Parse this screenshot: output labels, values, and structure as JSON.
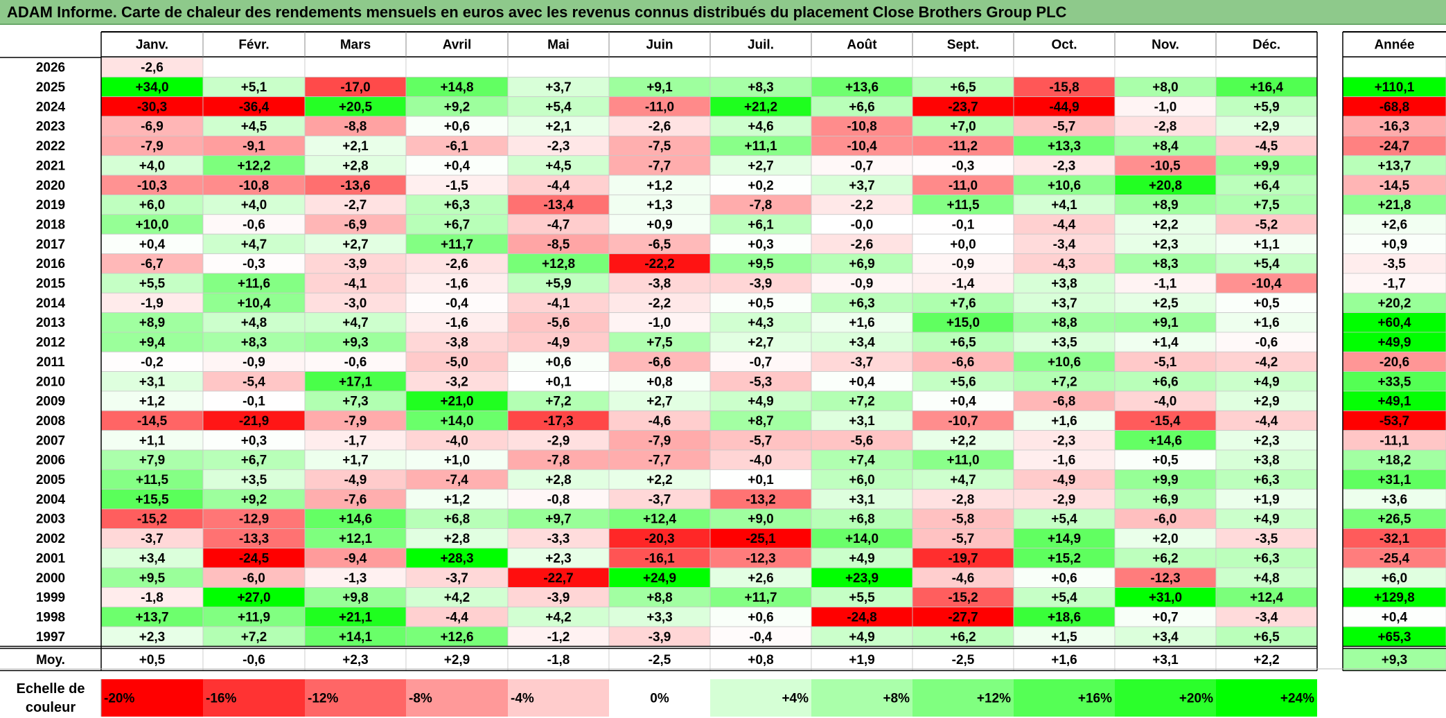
{
  "title": "ADAM Informe. Carte de chaleur des rendements mensuels en euros avec les revenus connus distribués du placement Close Brothers Group PLC",
  "chart_data": {
    "type": "heatmap",
    "columns": [
      "Janv.",
      "Févr.",
      "Mars",
      "Avril",
      "Mai",
      "Juin",
      "Juil.",
      "Août",
      "Sept.",
      "Oct.",
      "Nov.",
      "Déc."
    ],
    "year_column_label": "Année",
    "average_row_label": "Moy.",
    "rows": [
      {
        "label": "2026",
        "values": [
          "-2,6",
          "",
          "",
          "",
          "",
          "",
          "",
          "",
          "",
          "",
          "",
          ""
        ],
        "year": ""
      },
      {
        "label": "2025",
        "values": [
          "+34,0",
          "+5,1",
          "-17,0",
          "+14,8",
          "+3,7",
          "+9,1",
          "+8,3",
          "+13,6",
          "+6,5",
          "-15,8",
          "+8,0",
          "+16,4"
        ],
        "year": "+110,1"
      },
      {
        "label": "2024",
        "values": [
          "-30,3",
          "-36,4",
          "+20,5",
          "+9,2",
          "+5,4",
          "-11,0",
          "+21,2",
          "+6,6",
          "-23,7",
          "-44,9",
          "-1,0",
          "+5,9"
        ],
        "year": "-68,8"
      },
      {
        "label": "2023",
        "values": [
          "-6,9",
          "+4,5",
          "-8,8",
          "+0,6",
          "+2,1",
          "-2,6",
          "+4,6",
          "-10,8",
          "+7,0",
          "-5,7",
          "-2,8",
          "+2,9"
        ],
        "year": "-16,3"
      },
      {
        "label": "2022",
        "values": [
          "-7,9",
          "-9,1",
          "+2,1",
          "-6,1",
          "-2,3",
          "-7,5",
          "+11,1",
          "-10,4",
          "-11,2",
          "+13,3",
          "+8,4",
          "-4,5"
        ],
        "year": "-24,7"
      },
      {
        "label": "2021",
        "values": [
          "+4,0",
          "+12,2",
          "+2,8",
          "+0,4",
          "+4,5",
          "-7,7",
          "+2,7",
          "-0,7",
          "-0,3",
          "-2,3",
          "-10,5",
          "+9,9"
        ],
        "year": "+13,7"
      },
      {
        "label": "2020",
        "values": [
          "-10,3",
          "-10,8",
          "-13,6",
          "-1,5",
          "-4,4",
          "+1,2",
          "+0,2",
          "+3,7",
          "-11,0",
          "+10,6",
          "+20,8",
          "+6,4"
        ],
        "year": "-14,5"
      },
      {
        "label": "2019",
        "values": [
          "+6,0",
          "+4,0",
          "-2,7",
          "+6,3",
          "-13,4",
          "+1,3",
          "-7,8",
          "-2,2",
          "+11,5",
          "+4,1",
          "+8,9",
          "+7,5"
        ],
        "year": "+21,8"
      },
      {
        "label": "2018",
        "values": [
          "+10,0",
          "-0,6",
          "-6,9",
          "+6,7",
          "-4,7",
          "+0,9",
          "+6,1",
          "-0,0",
          "-0,1",
          "-4,4",
          "+2,2",
          "-5,2"
        ],
        "year": "+2,6"
      },
      {
        "label": "2017",
        "values": [
          "+0,4",
          "+4,7",
          "+2,7",
          "+11,7",
          "-8,5",
          "-6,5",
          "+0,3",
          "-2,6",
          "+0,0",
          "-3,4",
          "+2,3",
          "+1,1"
        ],
        "year": "+0,9"
      },
      {
        "label": "2016",
        "values": [
          "-6,7",
          "-0,3",
          "-3,9",
          "-2,6",
          "+12,8",
          "-22,2",
          "+9,5",
          "+6,9",
          "-0,9",
          "-4,3",
          "+8,3",
          "+5,4"
        ],
        "year": "-3,5"
      },
      {
        "label": "2015",
        "values": [
          "+5,5",
          "+11,6",
          "-4,1",
          "-1,6",
          "+5,9",
          "-3,8",
          "-3,9",
          "-0,9",
          "-1,4",
          "+3,8",
          "-1,1",
          "-10,4"
        ],
        "year": "-1,7"
      },
      {
        "label": "2014",
        "values": [
          "-1,9",
          "+10,4",
          "-3,0",
          "-0,4",
          "-4,1",
          "-2,2",
          "+0,5",
          "+6,3",
          "+7,6",
          "+3,7",
          "+2,5",
          "+0,5"
        ],
        "year": "+20,2"
      },
      {
        "label": "2013",
        "values": [
          "+8,9",
          "+4,8",
          "+4,7",
          "-1,6",
          "-5,6",
          "-1,0",
          "+4,3",
          "+1,6",
          "+15,0",
          "+8,8",
          "+9,1",
          "+1,6"
        ],
        "year": "+60,4"
      },
      {
        "label": "2012",
        "values": [
          "+9,4",
          "+8,3",
          "+9,3",
          "-3,8",
          "-4,9",
          "+7,5",
          "+2,7",
          "+3,4",
          "+6,5",
          "+3,5",
          "+1,4",
          "-0,6"
        ],
        "year": "+49,9"
      },
      {
        "label": "2011",
        "values": [
          "-0,2",
          "-0,9",
          "-0,6",
          "-5,0",
          "+0,6",
          "-6,6",
          "-0,7",
          "-3,7",
          "-6,6",
          "+10,6",
          "-5,1",
          "-4,2"
        ],
        "year": "-20,6"
      },
      {
        "label": "2010",
        "values": [
          "+3,1",
          "-5,4",
          "+17,1",
          "-3,2",
          "+0,1",
          "+0,8",
          "-5,3",
          "+0,4",
          "+5,6",
          "+7,2",
          "+6,6",
          "+4,9"
        ],
        "year": "+33,5"
      },
      {
        "label": "2009",
        "values": [
          "+1,2",
          "-0,1",
          "+7,3",
          "+21,0",
          "+7,2",
          "+2,7",
          "+4,9",
          "+7,2",
          "+0,4",
          "-6,8",
          "-4,0",
          "+2,9"
        ],
        "year": "+49,1"
      },
      {
        "label": "2008",
        "values": [
          "-14,5",
          "-21,9",
          "-7,9",
          "+14,0",
          "-17,3",
          "-4,6",
          "+8,7",
          "+3,1",
          "-10,7",
          "+1,6",
          "-15,4",
          "-4,4"
        ],
        "year": "-53,7"
      },
      {
        "label": "2007",
        "values": [
          "+1,1",
          "+0,3",
          "-1,7",
          "-4,0",
          "-2,9",
          "-7,9",
          "-5,7",
          "-5,6",
          "+2,2",
          "-2,3",
          "+14,6",
          "+2,3"
        ],
        "year": "-11,1"
      },
      {
        "label": "2006",
        "values": [
          "+7,9",
          "+6,7",
          "+1,7",
          "+1,0",
          "-7,8",
          "-7,7",
          "-4,0",
          "+7,4",
          "+11,0",
          "-1,6",
          "+0,5",
          "+3,8"
        ],
        "year": "+18,2"
      },
      {
        "label": "2005",
        "values": [
          "+11,5",
          "+3,5",
          "-4,9",
          "-7,4",
          "+2,8",
          "+2,2",
          "+0,1",
          "+6,0",
          "+4,7",
          "-4,9",
          "+9,9",
          "+6,3"
        ],
        "year": "+31,1"
      },
      {
        "label": "2004",
        "values": [
          "+15,5",
          "+9,2",
          "-7,6",
          "+1,2",
          "-0,8",
          "-3,7",
          "-13,2",
          "+3,1",
          "-2,8",
          "-2,9",
          "+6,9",
          "+1,9"
        ],
        "year": "+3,6"
      },
      {
        "label": "2003",
        "values": [
          "-15,2",
          "-12,9",
          "+14,6",
          "+6,8",
          "+9,7",
          "+12,4",
          "+9,0",
          "+6,8",
          "-5,8",
          "+5,4",
          "-6,0",
          "+4,9"
        ],
        "year": "+26,5"
      },
      {
        "label": "2002",
        "values": [
          "-3,7",
          "-13,3",
          "+12,1",
          "+2,8",
          "-3,3",
          "-20,3",
          "-25,1",
          "+14,0",
          "-5,7",
          "+14,9",
          "+2,0",
          "-3,5"
        ],
        "year": "-32,1"
      },
      {
        "label": "2001",
        "values": [
          "+3,4",
          "-24,5",
          "-9,4",
          "+28,3",
          "+2,3",
          "-16,1",
          "-12,3",
          "+4,9",
          "-19,7",
          "+15,2",
          "+6,2",
          "+6,3"
        ],
        "year": "-25,4"
      },
      {
        "label": "2000",
        "values": [
          "+9,5",
          "-6,0",
          "-1,3",
          "-3,7",
          "-22,7",
          "+24,9",
          "+2,6",
          "+23,9",
          "-4,6",
          "+0,6",
          "-12,3",
          "+4,8"
        ],
        "year": "+6,0"
      },
      {
        "label": "1999",
        "values": [
          "-1,8",
          "+27,0",
          "+9,8",
          "+4,2",
          "-3,9",
          "+8,8",
          "+11,7",
          "+5,5",
          "-15,2",
          "+5,4",
          "+31,0",
          "+12,4"
        ],
        "year": "+129,8"
      },
      {
        "label": "1998",
        "values": [
          "+13,7",
          "+11,9",
          "+21,1",
          "-4,4",
          "+4,2",
          "+3,3",
          "+0,6",
          "-24,8",
          "-27,7",
          "+18,6",
          "+0,7",
          "-3,4"
        ],
        "year": "+0,4"
      },
      {
        "label": "1997",
        "values": [
          "+2,3",
          "+7,2",
          "+14,1",
          "+12,6",
          "-1,2",
          "-3,9",
          "-0,4",
          "+4,9",
          "+6,2",
          "+1,5",
          "+3,4",
          "+6,5"
        ],
        "year": "+65,3"
      }
    ],
    "averages": [
      "+0,5",
      "-0,6",
      "+2,3",
      "+2,9",
      "-1,8",
      "-2,5",
      "+0,8",
      "+1,9",
      "-2,5",
      "+1,6",
      "+3,1",
      "+2,2"
    ],
    "average_year": "+9,3",
    "scale_label": [
      "Echelle de",
      "couleur"
    ],
    "scale_steps": [
      "-20%",
      "-16%",
      "-12%",
      "-8%",
      "-4%",
      "0%",
      "+4%",
      "+8%",
      "+12%",
      "+16%",
      "+20%",
      "+24%"
    ],
    "colors": {
      "negative": "#ff0000",
      "positive": "#00ff00",
      "neutral": "#ffffff",
      "title_bg": "#8ec98b"
    }
  }
}
